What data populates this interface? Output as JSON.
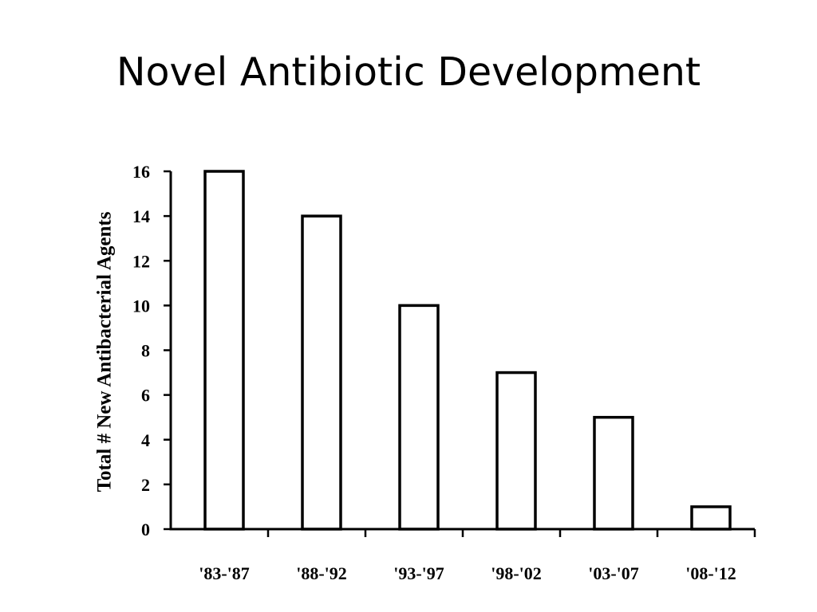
{
  "slide": {
    "title": "Novel Antibiotic Development"
  },
  "chart_data": {
    "type": "bar",
    "title": "",
    "xlabel": "",
    "ylabel": "Total # New Antibacterial Agents",
    "categories": [
      "'83-'87",
      "'88-'92",
      "'93-'97",
      "'98-'02",
      "'03-'07",
      "'08-'12"
    ],
    "values": [
      16,
      14,
      10,
      7,
      5,
      1
    ],
    "ylim": [
      0,
      16
    ],
    "yticks": [
      0,
      2,
      4,
      6,
      8,
      10,
      12,
      14,
      16
    ],
    "grid": false,
    "legend": "none",
    "bar_fill": "#ffffff",
    "bar_stroke": "#000000"
  }
}
